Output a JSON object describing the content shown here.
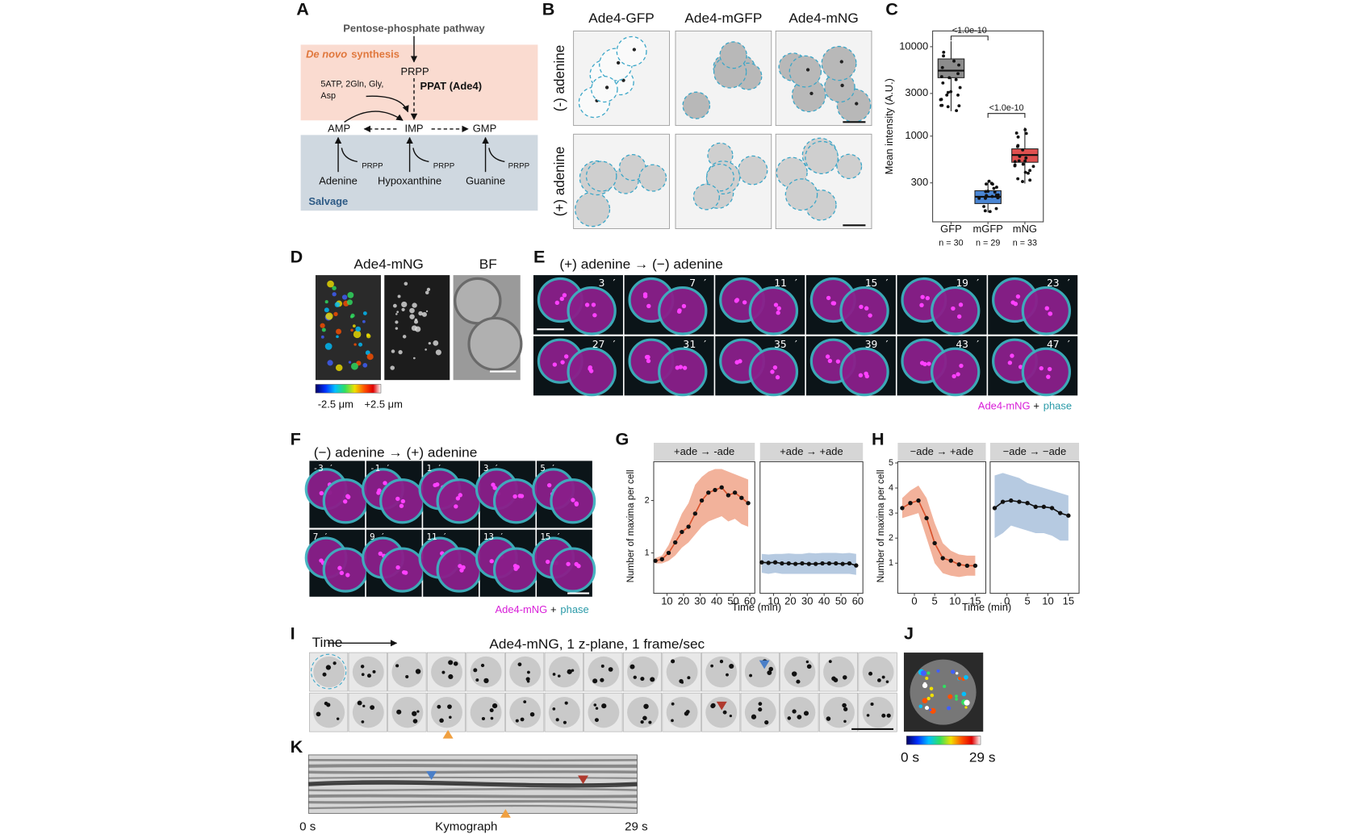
{
  "figure": {
    "A": {
      "letter": "A",
      "pathway": "Pentose-phosphate pathway",
      "de_novo": "De novo",
      "synthesis": "synthesis",
      "prpp": "PRPP",
      "substrates": [
        "5ATP, 2Gln, Gly,",
        "Asp"
      ],
      "enzyme": "PPAT (Ade4)",
      "products": [
        "AMP",
        "IMP",
        "GMP"
      ],
      "salvage_prpp": [
        "PRPP",
        "PRPP",
        "PRPP"
      ],
      "bases": [
        "Adenine",
        "Hypoxanthine",
        "Guanine"
      ],
      "salvage": "Salvage"
    },
    "B": {
      "letter": "B",
      "columns": [
        "Ade4-GFP",
        "Ade4-mGFP",
        "Ade4-mNG"
      ],
      "rows": [
        "(-) adenine",
        "(+) adenine"
      ]
    },
    "C": {
      "letter": "C"
    },
    "D": {
      "letter": "D",
      "columns": [
        "Ade4-mNG",
        "BF"
      ],
      "depth_labels": [
        "-2.5 μm",
        "+2.5 μm"
      ]
    },
    "E": {
      "letter": "E",
      "title": "(+) adenine → (−) adenine",
      "times": [
        "3 ′",
        "7 ′",
        "11 ′",
        "15 ′",
        "19 ′",
        "23 ′",
        "27 ′",
        "31 ′",
        "35 ′",
        "39 ′",
        "43 ′",
        "47 ′"
      ],
      "legend": [
        "Ade4-mNG",
        "+",
        "phase"
      ]
    },
    "F": {
      "letter": "F",
      "title": "(−) adenine → (+) adenine",
      "times": [
        "-3 ′",
        "-1 ′",
        "1 ′",
        "3 ′",
        "5 ′",
        "7 ′",
        "9 ′",
        "11 ′",
        "13 ′",
        "15 ′"
      ],
      "legend": [
        "Ade4-mNG",
        "+",
        "phase"
      ]
    },
    "G": {
      "letter": "G"
    },
    "H": {
      "letter": "H"
    },
    "I": {
      "letter": "I",
      "time": "Time",
      "title": "Ade4-mNG, 1 z-plane, 1 frame/sec"
    },
    "J": {
      "letter": "J",
      "labels": [
        "0 s",
        "29 s"
      ]
    },
    "K": {
      "letter": "K",
      "labels": [
        "0 s",
        "Kymograph",
        "29 s"
      ]
    }
  },
  "chart_data": [
    {
      "type": "box",
      "y_label": "Mean intensity (A.U.)",
      "log_scale": true,
      "categories": [
        "GFP",
        "mGFP",
        "mNG"
      ],
      "counts": [
        "n = 30",
        "n = 29",
        "n = 33"
      ],
      "ylim": [
        110,
        15000
      ],
      "yticks": [
        300,
        1000,
        3000,
        10000
      ],
      "boxes": [
        {
          "min": 1900,
          "q1": 4500,
          "median": 5400,
          "q3": 7300,
          "max": 11500,
          "color": "#8c8c8c"
        },
        {
          "min": 140,
          "q1": 176,
          "median": 210,
          "q3": 245,
          "max": 320,
          "color": "#4a86d4"
        },
        {
          "min": 295,
          "q1": 510,
          "median": 615,
          "q3": 720,
          "max": 1250,
          "color": "#e0504f"
        }
      ],
      "annotations": [
        "<1.0e-10",
        "<1.0e-10"
      ]
    },
    {
      "type": "line",
      "y_label": "Number of maxima per cell",
      "x_label": "Time (min)",
      "ylim": [
        0.23,
        2.74
      ],
      "yticks": [
        1,
        2
      ],
      "xlim": [
        2,
        63
      ],
      "xticks": [
        10,
        20,
        30,
        40,
        50,
        60
      ],
      "facets": [
        {
          "title": "+ade → -ade",
          "x": [
            3,
            7,
            11,
            15,
            19,
            23,
            27,
            31,
            35,
            39,
            43,
            47,
            51,
            55,
            59
          ],
          "values": [
            0.85,
            0.88,
            1.0,
            1.2,
            1.4,
            1.5,
            1.75,
            2.0,
            2.15,
            2.2,
            2.25,
            2.1,
            2.15,
            2.05,
            1.95
          ],
          "lower": [
            0.8,
            0.8,
            0.85,
            0.95,
            1.1,
            1.2,
            1.35,
            1.5,
            1.6,
            1.65,
            1.7,
            1.6,
            1.65,
            1.55,
            1.5
          ],
          "upper": [
            0.9,
            0.95,
            1.15,
            1.45,
            1.75,
            1.95,
            2.3,
            2.45,
            2.55,
            2.6,
            2.6,
            2.55,
            2.5,
            2.45,
            2.4
          ],
          "line_color": "#d8512b",
          "band_color": "#f0a58a"
        },
        {
          "title": "+ade → +ade",
          "x": [
            3,
            7,
            11,
            15,
            19,
            23,
            27,
            31,
            35,
            39,
            43,
            47,
            51,
            55,
            59
          ],
          "values": [
            0.82,
            0.81,
            0.82,
            0.8,
            0.8,
            0.79,
            0.8,
            0.79,
            0.79,
            0.8,
            0.8,
            0.8,
            0.79,
            0.8,
            0.76
          ],
          "lower": [
            0.62,
            0.6,
            0.62,
            0.6,
            0.6,
            0.6,
            0.6,
            0.6,
            0.6,
            0.6,
            0.6,
            0.6,
            0.6,
            0.6,
            0.58
          ],
          "upper": [
            0.98,
            0.97,
            0.98,
            0.98,
            0.99,
            0.98,
            0.98,
            1.0,
            0.99,
            1.0,
            1.0,
            1.0,
            0.99,
            1.0,
            0.98
          ],
          "line_color": "#111111",
          "band_color": "#a9c1dc"
        }
      ]
    },
    {
      "type": "line",
      "y_label": "Number of maxima per cell",
      "x_label": "Time (min)",
      "ylim": [
        -0.2,
        5.05
      ],
      "yticks": [
        1,
        2,
        3,
        4,
        5
      ],
      "xlim": [
        -4.1,
        17.6
      ],
      "xticks": [
        0,
        5,
        10,
        15
      ],
      "facets": [
        {
          "title": "−ade → +ade",
          "x": [
            -3,
            -1,
            1,
            3,
            5,
            7,
            9,
            11,
            13,
            15
          ],
          "values": [
            3.2,
            3.4,
            3.5,
            2.8,
            1.8,
            1.2,
            1.1,
            0.95,
            0.9,
            0.9
          ],
          "lower": [
            2.8,
            2.9,
            3.0,
            2.0,
            1.0,
            0.6,
            0.5,
            0.45,
            0.5,
            0.5
          ],
          "upper": [
            3.6,
            3.9,
            4.1,
            3.6,
            2.6,
            1.8,
            1.5,
            1.35,
            1.3,
            1.3
          ],
          "line_color": "#d8512b",
          "band_color": "#f0a58a"
        },
        {
          "title": "−ade → −ade",
          "x": [
            -3,
            -1,
            1,
            3,
            5,
            7,
            9,
            11,
            13,
            15
          ],
          "values": [
            3.2,
            3.45,
            3.5,
            3.45,
            3.4,
            3.25,
            3.25,
            3.2,
            3.0,
            2.9
          ],
          "lower": [
            2.0,
            2.2,
            2.5,
            2.4,
            2.3,
            2.2,
            2.2,
            2.1,
            1.9,
            1.9
          ],
          "upper": [
            4.5,
            4.6,
            4.5,
            4.4,
            4.2,
            4.1,
            4.0,
            3.9,
            3.8,
            3.7
          ],
          "line_color": "#111111",
          "band_color": "#a9c1dc"
        }
      ]
    }
  ]
}
